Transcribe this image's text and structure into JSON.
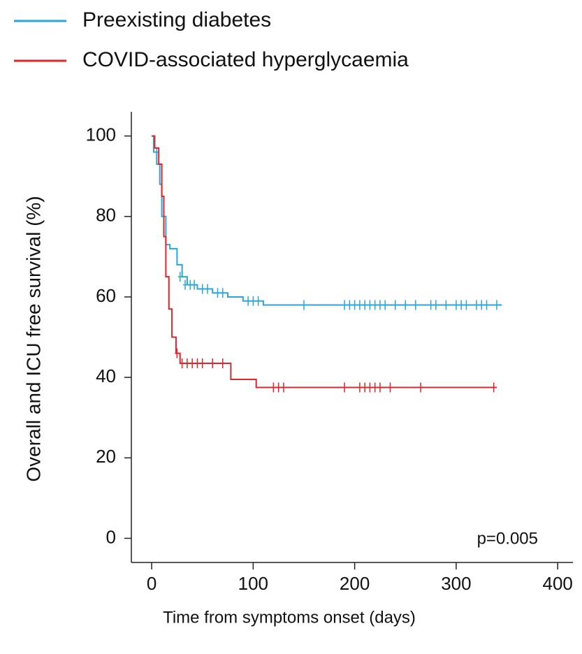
{
  "chart_data": {
    "type": "line",
    "step": true,
    "xlabel": "Time from symptoms onset (days)",
    "ylabel": "Overall and  ICU free survival (%)",
    "annotation": "p=0.005",
    "xlim": [
      -20,
      415
    ],
    "ylim": [
      -6,
      104
    ],
    "xticks": [
      0,
      100,
      200,
      300,
      400
    ],
    "yticks": [
      0,
      20,
      40,
      60,
      80,
      100
    ],
    "series": [
      {
        "name": "Preexisting diabetes",
        "color": "#2aa6d8",
        "x": [
          0,
          2,
          5,
          8,
          10,
          14,
          18,
          25,
          30,
          35,
          45,
          60,
          75,
          90,
          110,
          345
        ],
        "values": [
          100,
          96,
          93,
          88,
          80,
          73,
          72,
          68,
          65,
          63,
          62,
          61,
          60,
          59,
          58,
          58
        ],
        "censor_x": [
          5,
          28,
          33,
          38,
          42,
          50,
          55,
          65,
          70,
          95,
          100,
          105,
          150,
          190,
          195,
          200,
          205,
          210,
          215,
          220,
          225,
          230,
          240,
          250,
          260,
          275,
          280,
          290,
          300,
          305,
          310,
          320,
          325,
          330,
          340
        ],
        "censor_y": [
          96,
          65,
          63,
          63,
          63,
          62,
          62,
          61,
          61,
          59,
          59,
          59,
          58,
          58,
          58,
          58,
          58,
          58,
          58,
          58,
          58,
          58,
          58,
          58,
          58,
          58,
          58,
          58,
          58,
          58,
          58,
          58,
          58,
          58,
          58
        ]
      },
      {
        "name": "COVID-associated  hyperglycaemia",
        "color": "#e0262b",
        "x": [
          0,
          3,
          7,
          10,
          12,
          14,
          17,
          20,
          24,
          28,
          78,
          103,
          340
        ],
        "values": [
          100,
          97,
          93,
          85,
          75,
          65,
          57,
          50,
          46,
          43.5,
          39.5,
          37.5,
          37.5
        ],
        "censor_x": [
          25,
          30,
          35,
          40,
          45,
          50,
          60,
          70,
          120,
          125,
          130,
          190,
          205,
          210,
          215,
          220,
          225,
          235,
          265,
          337
        ],
        "censor_y": [
          46,
          43.5,
          43.5,
          43.5,
          43.5,
          43.5,
          43.5,
          43.5,
          37.5,
          37.5,
          37.5,
          37.5,
          37.5,
          37.5,
          37.5,
          37.5,
          37.5,
          37.5,
          37.5,
          37.5
        ]
      }
    ]
  }
}
